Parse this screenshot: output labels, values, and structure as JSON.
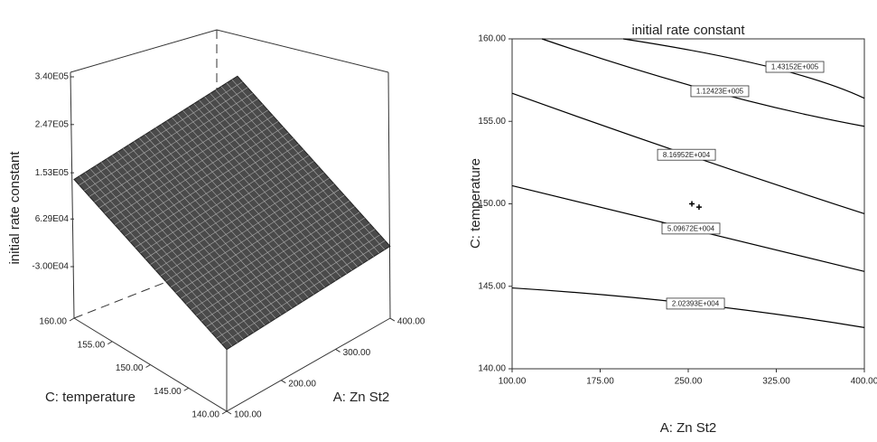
{
  "chart_data": [
    {
      "type": "surface",
      "zlabel": "initial rate constant",
      "xlabel": "A: Zn St2",
      "ylabel": "C: temperature",
      "x": [
        100,
        400
      ],
      "y": [
        140,
        160
      ],
      "z": [
        [
          -10000,
          10000
        ],
        [
          140000,
          160000
        ]
      ],
      "color": "#4a4a4a",
      "xlim": [
        100,
        400
      ],
      "xticks": [
        {
          "value": 100,
          "label": "100.00"
        },
        {
          "value": 200,
          "label": "200.00"
        },
        {
          "value": 300,
          "label": "300.00"
        },
        {
          "value": 400,
          "label": "400.00"
        }
      ],
      "ylim": [
        140,
        160
      ],
      "yticks": [
        {
          "value": 140,
          "label": "140.00"
        },
        {
          "value": 145,
          "label": "145.00"
        },
        {
          "value": 150,
          "label": "150.00"
        },
        {
          "value": 155,
          "label": "155.00"
        },
        {
          "value": 160,
          "label": "160.00"
        }
      ],
      "zlim": [
        -30000,
        340000
      ],
      "zticks": [
        {
          "value": -30000,
          "label": "-3.00E04"
        },
        {
          "value": 62900,
          "label": "6.29E04"
        },
        {
          "value": 153000,
          "label": "1.53E05"
        },
        {
          "value": 247000,
          "label": "2.47E05"
        },
        {
          "value": 340000,
          "label": "3.40E05"
        }
      ]
    },
    {
      "type": "contour",
      "title": "initial rate constant",
      "xlabel": "A: Zn St2",
      "ylabel": "C: temperature",
      "color": "#000000",
      "xlim": [
        100,
        400
      ],
      "xticks": [
        {
          "value": 100,
          "label": "100.00"
        },
        {
          "value": 175,
          "label": "175.00"
        },
        {
          "value": 250,
          "label": "250.00"
        },
        {
          "value": 325,
          "label": "325.00"
        },
        {
          "value": 400,
          "label": "400.00"
        }
      ],
      "ylim": [
        140,
        160
      ],
      "yticks": [
        {
          "value": 140,
          "label": "140.00"
        },
        {
          "value": 145,
          "label": "145.00"
        },
        {
          "value": 150,
          "label": "150.00"
        },
        {
          "value": 155,
          "label": "155.00"
        },
        {
          "value": 160,
          "label": "160.00"
        }
      ],
      "contours": [
        {
          "level": 143152,
          "label": "1.43152E+005",
          "x": [
            194.6,
            340.8,
            400
          ],
          "y": [
            160,
            158.4,
            156.4
          ]
        },
        {
          "level": 112423,
          "label": "1.12423E+005",
          "x": [
            125.4,
            276.9,
            400
          ],
          "y": [
            160,
            156.3,
            154.7
          ]
        },
        {
          "level": 81695.2,
          "label": "8.16952E+004",
          "x": [
            100,
            248.5,
            400
          ],
          "y": [
            156.7,
            152.9,
            149.4
          ]
        },
        {
          "level": 50967.2,
          "label": "5.09672E+004",
          "x": [
            100,
            252.3,
            400
          ],
          "y": [
            151.1,
            148.5,
            145.9
          ]
        },
        {
          "level": 20239.3,
          "label": "2.02393E+004",
          "x": [
            100,
            256.2,
            400
          ],
          "y": [
            144.9,
            144.2,
            142.5
          ]
        }
      ],
      "points": {
        "x": [
          253.1,
          259.2
        ],
        "y": [
          150.0,
          149.8
        ]
      }
    }
  ]
}
